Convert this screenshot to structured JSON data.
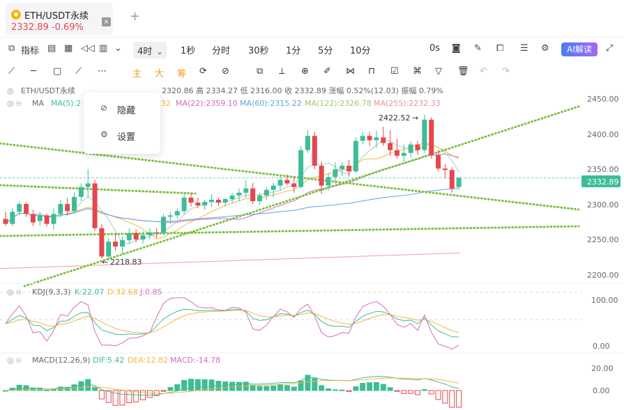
{
  "tab": {
    "coin_icon": "ethereum-coin-icon",
    "symbol": "ETH/USDT永续",
    "price_change": "2332.89  -0.69%",
    "close": "×"
  },
  "toolbar": {
    "indicators": "指标",
    "timeframe": "4时",
    "intervals": [
      "1秒",
      "分时",
      "30秒",
      "1分",
      "5分",
      "10分"
    ],
    "countdown": "0s",
    "ai_label": "AI解读"
  },
  "drawbar": {
    "main": "主",
    "big": "大",
    "chips": "筹"
  },
  "legend": {
    "main": "ETH/USDT永续",
    "ohlc": "2320.86 高 2334.27 低 2316.00 收 2332.89 涨幅 0.52%(12.03) 振幅 0.79%",
    "ma_label": "MA",
    "ma5": "MA(5):2",
    "ma10_tail": "32",
    "ma22": "MA(22):2359.10",
    "ma60": "MA(60):2315.22",
    "ma122": "MA(122):2326.78",
    "ma255": "MA(255):2232.33",
    "kdj_label": "KDJ(9,3,3)",
    "kdj_k": "K:22.07",
    "kdj_d": "D:32.68",
    "kdj_j": "J:0.85",
    "macd_label": "MACD(12,26,9)",
    "macd_dif": "DIF:5.42",
    "macd_dea": "DEA:12.82",
    "macd_val": "MACD:-14.78"
  },
  "menu": {
    "hide": "隐藏",
    "settings": "设置"
  },
  "annotations": {
    "high": "2422.52",
    "low": "2218.83"
  },
  "axis": {
    "price_ticks": [
      "2450.00",
      "2400.00",
      "2350.00",
      "2300.00",
      "2250.00",
      "2200.00"
    ],
    "current_price": "2332.89",
    "kdj_ticks": [
      "100.00",
      "0.00"
    ],
    "macd_ticks": [
      "20.00",
      "0.00"
    ]
  },
  "colors": {
    "up": "#3dbd97",
    "down": "#e5474d",
    "trend": "#7cc242",
    "ma5": "#9fd1c4",
    "ma10": "#f5b63d",
    "ma22": "#d36bc0",
    "ma60": "#5aa6d8",
    "ma122": "#b0d47a",
    "ma255": "#f0a0a4"
  },
  "chart_data": {
    "type": "candlestick",
    "timeframe": "4h",
    "ylim": [
      2195,
      2460
    ],
    "candles": [
      {
        "o": 2275,
        "h": 2285,
        "l": 2265,
        "c": 2268
      },
      {
        "o": 2268,
        "h": 2290,
        "l": 2265,
        "c": 2285
      },
      {
        "o": 2285,
        "h": 2300,
        "l": 2280,
        "c": 2296
      },
      {
        "o": 2296,
        "h": 2299,
        "l": 2278,
        "c": 2282
      },
      {
        "o": 2282,
        "h": 2288,
        "l": 2265,
        "c": 2270
      },
      {
        "o": 2272,
        "h": 2285,
        "l": 2265,
        "c": 2280
      },
      {
        "o": 2280,
        "h": 2283,
        "l": 2264,
        "c": 2268
      },
      {
        "o": 2268,
        "h": 2290,
        "l": 2260,
        "c": 2282
      },
      {
        "o": 2282,
        "h": 2302,
        "l": 2278,
        "c": 2296
      },
      {
        "o": 2296,
        "h": 2305,
        "l": 2280,
        "c": 2286
      },
      {
        "o": 2286,
        "h": 2312,
        "l": 2284,
        "c": 2306
      },
      {
        "o": 2306,
        "h": 2325,
        "l": 2300,
        "c": 2320
      },
      {
        "o": 2320,
        "h": 2345,
        "l": 2305,
        "c": 2325
      },
      {
        "o": 2325,
        "h": 2330,
        "l": 2258,
        "c": 2262
      },
      {
        "o": 2262,
        "h": 2268,
        "l": 2219,
        "c": 2222
      },
      {
        "o": 2222,
        "h": 2248,
        "l": 2216,
        "c": 2243
      },
      {
        "o": 2243,
        "h": 2255,
        "l": 2230,
        "c": 2236
      },
      {
        "o": 2236,
        "h": 2250,
        "l": 2226,
        "c": 2245
      },
      {
        "o": 2245,
        "h": 2262,
        "l": 2240,
        "c": 2255
      },
      {
        "o": 2255,
        "h": 2260,
        "l": 2242,
        "c": 2246
      },
      {
        "o": 2246,
        "h": 2258,
        "l": 2240,
        "c": 2252
      },
      {
        "o": 2252,
        "h": 2262,
        "l": 2246,
        "c": 2256
      },
      {
        "o": 2256,
        "h": 2262,
        "l": 2248,
        "c": 2255
      },
      {
        "o": 2255,
        "h": 2282,
        "l": 2252,
        "c": 2278
      },
      {
        "o": 2278,
        "h": 2285,
        "l": 2268,
        "c": 2280
      },
      {
        "o": 2280,
        "h": 2290,
        "l": 2275,
        "c": 2286
      },
      {
        "o": 2286,
        "h": 2310,
        "l": 2282,
        "c": 2305
      },
      {
        "o": 2305,
        "h": 2312,
        "l": 2292,
        "c": 2298
      },
      {
        "o": 2298,
        "h": 2305,
        "l": 2290,
        "c": 2294
      },
      {
        "o": 2294,
        "h": 2302,
        "l": 2288,
        "c": 2299
      },
      {
        "o": 2299,
        "h": 2310,
        "l": 2292,
        "c": 2302
      },
      {
        "o": 2302,
        "h": 2305,
        "l": 2293,
        "c": 2298
      },
      {
        "o": 2298,
        "h": 2305,
        "l": 2292,
        "c": 2303
      },
      {
        "o": 2303,
        "h": 2312,
        "l": 2297,
        "c": 2308
      },
      {
        "o": 2308,
        "h": 2318,
        "l": 2300,
        "c": 2312
      },
      {
        "o": 2312,
        "h": 2330,
        "l": 2305,
        "c": 2318
      },
      {
        "o": 2318,
        "h": 2326,
        "l": 2296,
        "c": 2300
      },
      {
        "o": 2300,
        "h": 2312,
        "l": 2295,
        "c": 2308
      },
      {
        "o": 2308,
        "h": 2320,
        "l": 2302,
        "c": 2316
      },
      {
        "o": 2316,
        "h": 2326,
        "l": 2305,
        "c": 2322
      },
      {
        "o": 2322,
        "h": 2335,
        "l": 2315,
        "c": 2330
      },
      {
        "o": 2330,
        "h": 2338,
        "l": 2322,
        "c": 2325
      },
      {
        "o": 2325,
        "h": 2335,
        "l": 2312,
        "c": 2320
      },
      {
        "o": 2320,
        "h": 2378,
        "l": 2318,
        "c": 2372
      },
      {
        "o": 2372,
        "h": 2400,
        "l": 2368,
        "c": 2392
      },
      {
        "o": 2392,
        "h": 2398,
        "l": 2345,
        "c": 2350
      },
      {
        "o": 2350,
        "h": 2356,
        "l": 2310,
        "c": 2322
      },
      {
        "o": 2322,
        "h": 2340,
        "l": 2315,
        "c": 2334
      },
      {
        "o": 2334,
        "h": 2355,
        "l": 2325,
        "c": 2345
      },
      {
        "o": 2345,
        "h": 2355,
        "l": 2335,
        "c": 2350
      },
      {
        "o": 2350,
        "h": 2358,
        "l": 2335,
        "c": 2342
      },
      {
        "o": 2342,
        "h": 2390,
        "l": 2340,
        "c": 2385
      },
      {
        "o": 2385,
        "h": 2398,
        "l": 2380,
        "c": 2392
      },
      {
        "o": 2392,
        "h": 2398,
        "l": 2378,
        "c": 2386
      },
      {
        "o": 2386,
        "h": 2400,
        "l": 2375,
        "c": 2390
      },
      {
        "o": 2390,
        "h": 2405,
        "l": 2378,
        "c": 2382
      },
      {
        "o": 2382,
        "h": 2400,
        "l": 2364,
        "c": 2372
      },
      {
        "o": 2372,
        "h": 2388,
        "l": 2360,
        "c": 2364
      },
      {
        "o": 2364,
        "h": 2380,
        "l": 2355,
        "c": 2368
      },
      {
        "o": 2368,
        "h": 2385,
        "l": 2362,
        "c": 2380
      },
      {
        "o": 2380,
        "h": 2385,
        "l": 2365,
        "c": 2372
      },
      {
        "o": 2372,
        "h": 2422,
        "l": 2368,
        "c": 2415
      },
      {
        "o": 2415,
        "h": 2418,
        "l": 2360,
        "c": 2365
      },
      {
        "o": 2365,
        "h": 2372,
        "l": 2342,
        "c": 2346
      },
      {
        "o": 2346,
        "h": 2352,
        "l": 2332,
        "c": 2344
      },
      {
        "o": 2344,
        "h": 2348,
        "l": 2312,
        "c": 2318
      },
      {
        "o": 2320,
        "h": 2334,
        "l": 2316,
        "c": 2333
      }
    ]
  }
}
